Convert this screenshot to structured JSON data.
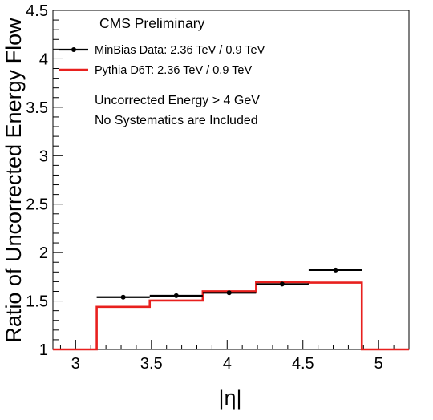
{
  "chart_data": {
    "type": "line",
    "header": "CMS Preliminary",
    "xlabel": "|η|",
    "ylabel": "Ratio of Uncorrected Energy Flow",
    "xlim": [
      2.85,
      5.2
    ],
    "ylim": [
      1,
      4.5
    ],
    "x_ticks": [
      3,
      3.5,
      4,
      4.5,
      5
    ],
    "x_tick_labels": [
      "3",
      "3.5",
      "4",
      "4.5",
      "5"
    ],
    "y_ticks": [
      1,
      1.5,
      2,
      2.5,
      3,
      3.5,
      4,
      4.5
    ],
    "y_tick_labels": [
      "1",
      "1.5",
      "2",
      "2.5",
      "3",
      "3.5",
      "4",
      "4.5"
    ],
    "grid": false,
    "legend_position": "top-left",
    "annotations": [
      "Uncorrected Energy > 4 GeV",
      "No Systematics are Included"
    ],
    "series": [
      {
        "name": "MinBias Data: 2.36 TeV / 0.9 TeV",
        "style": "points-with-x-errors",
        "color": "#000000",
        "points": [
          {
            "x": 3.314,
            "xlo": 3.139,
            "xhi": 3.489,
            "y": 1.54
          },
          {
            "x": 3.664,
            "xlo": 3.489,
            "xhi": 3.839,
            "y": 1.555
          },
          {
            "x": 4.013,
            "xlo": 3.839,
            "xhi": 4.191,
            "y": 1.585
          },
          {
            "x": 4.363,
            "xlo": 4.191,
            "xhi": 4.538,
            "y": 1.675
          },
          {
            "x": 4.716,
            "xlo": 4.538,
            "xhi": 4.889,
            "y": 1.82
          }
        ]
      },
      {
        "name": "Pythia D6T: 2.36 TeV / 0.9 TeV",
        "style": "step-histogram",
        "color": "#e8201e",
        "bin_edges": [
          2.85,
          3.139,
          3.489,
          3.839,
          4.191,
          4.538,
          4.889,
          5.2
        ],
        "values": [
          1.0,
          1.44,
          1.505,
          1.6,
          1.695,
          1.69,
          1.0
        ]
      }
    ]
  }
}
